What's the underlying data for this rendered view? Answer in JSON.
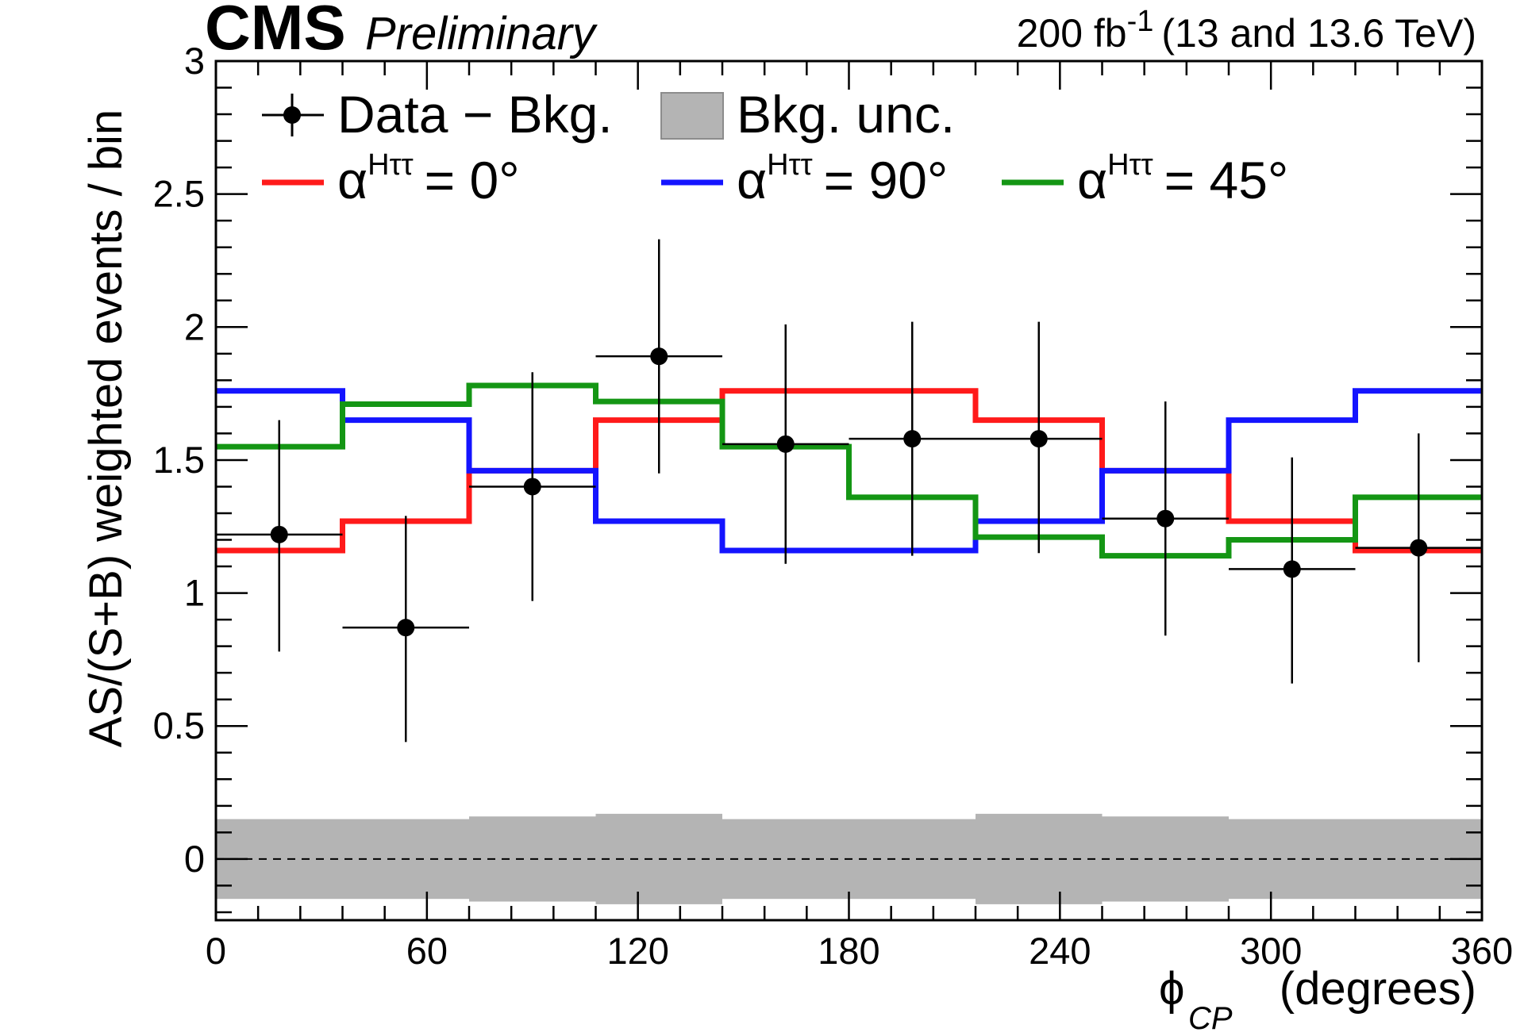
{
  "header": {
    "experiment": "CMS",
    "status": "Preliminary",
    "lumi_value": "200 fb",
    "lumi_exp": "-1",
    "energy": "(13 and 13.6 TeV)"
  },
  "axes": {
    "x_symbol": "ϕ",
    "x_subscript": "CP",
    "x_unit": "(degrees)",
    "y_title": "AS/(S+B) weighted events / bin"
  },
  "legend": {
    "data_label": "Data − Bkg.",
    "unc_label": "Bkg. unc.",
    "alpha_symbol": "α",
    "alpha_sup": "Hττ",
    "alpha0_value": "= 0°",
    "alpha90_value": "= 90°",
    "alpha45_value": "= 45°"
  },
  "colors": {
    "alpha0": "#ff1a1a",
    "alpha90": "#1414ff",
    "alpha45": "#149614",
    "band": "#b4b4b4",
    "data": "#000000"
  },
  "chart_data": {
    "type": "histogram",
    "title": "",
    "xlabel": "ϕ_CP (degrees)",
    "ylabel": "AS/(S+B) weighted events / bin",
    "xlim": [
      0,
      360
    ],
    "ylim": [
      -0.23,
      3.0
    ],
    "x_ticks": [
      "0",
      "60",
      "120",
      "180",
      "240",
      "300",
      "360"
    ],
    "y_ticks": [
      "0",
      "0.5",
      "1",
      "1.5",
      "2",
      "2.5",
      "3"
    ],
    "bin_edges": [
      0,
      36,
      72,
      108,
      144,
      180,
      216,
      252,
      288,
      324,
      360
    ],
    "series": [
      {
        "name": "αHττ = 0°",
        "color": "alpha0",
        "values": [
          1.16,
          1.27,
          1.46,
          1.65,
          1.76,
          1.76,
          1.65,
          1.46,
          1.27,
          1.16
        ]
      },
      {
        "name": "αHττ = 90°",
        "color": "alpha90",
        "values": [
          1.76,
          1.65,
          1.46,
          1.27,
          1.16,
          1.16,
          1.27,
          1.46,
          1.65,
          1.76
        ]
      },
      {
        "name": "αHττ = 45°",
        "color": "alpha45",
        "values": [
          1.55,
          1.71,
          1.78,
          1.72,
          1.55,
          1.36,
          1.21,
          1.14,
          1.2,
          1.36
        ]
      }
    ],
    "data_points": {
      "name": "Data − Bkg.",
      "x": [
        18,
        54,
        90,
        126,
        162,
        198,
        234,
        270,
        306,
        342
      ],
      "y": [
        1.22,
        0.87,
        1.4,
        1.89,
        1.56,
        1.58,
        1.58,
        1.28,
        1.09,
        1.17
      ],
      "err_low": [
        0.44,
        0.43,
        0.43,
        0.44,
        0.45,
        0.44,
        0.43,
        0.44,
        0.43,
        0.43
      ],
      "err_high": [
        0.43,
        0.42,
        0.43,
        0.44,
        0.45,
        0.44,
        0.44,
        0.44,
        0.42,
        0.43
      ]
    },
    "bkg_unc_band": {
      "name": "Bkg. unc.",
      "half_width": [
        0.15,
        0.15,
        0.16,
        0.17,
        0.15,
        0.15,
        0.17,
        0.16,
        0.15,
        0.15
      ]
    },
    "reference_line": {
      "y": 0,
      "style": "dashed"
    }
  }
}
